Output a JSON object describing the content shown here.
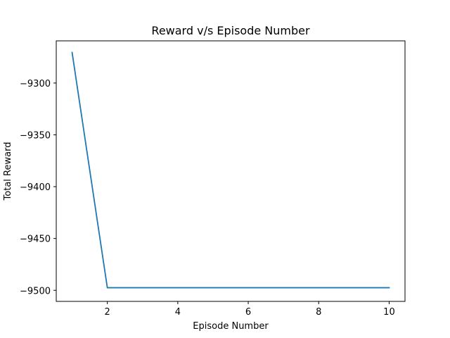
{
  "chart_data": {
    "type": "line",
    "title": "Reward v/s Episode Number",
    "xlabel": "Episode Number",
    "ylabel": "Total Reward",
    "xlim": [
      0.55,
      10.45
    ],
    "ylim": [
      -9510.7,
      -9259.3
    ],
    "grid": false,
    "x_ticks": [
      {
        "value": 2,
        "label": "2"
      },
      {
        "value": 4,
        "label": "4"
      },
      {
        "value": 6,
        "label": "6"
      },
      {
        "value": 8,
        "label": "8"
      },
      {
        "value": 10,
        "label": "10"
      }
    ],
    "y_ticks": [
      {
        "value": -9300,
        "label": "−9300"
      },
      {
        "value": -9350,
        "label": "−9350"
      },
      {
        "value": -9400,
        "label": "−9400"
      },
      {
        "value": -9450,
        "label": "−9450"
      },
      {
        "value": -9500,
        "label": "−9500"
      }
    ],
    "series": [
      {
        "color": "#1f77b4",
        "x": [
          1,
          2,
          3,
          4,
          5,
          6,
          7,
          8,
          9,
          10
        ],
        "y": [
          -9270.5,
          -9497.5,
          -9497.5,
          -9497.5,
          -9497.5,
          -9497.5,
          -9497.5,
          -9497.5,
          -9497.5,
          -9497.5
        ]
      }
    ]
  }
}
